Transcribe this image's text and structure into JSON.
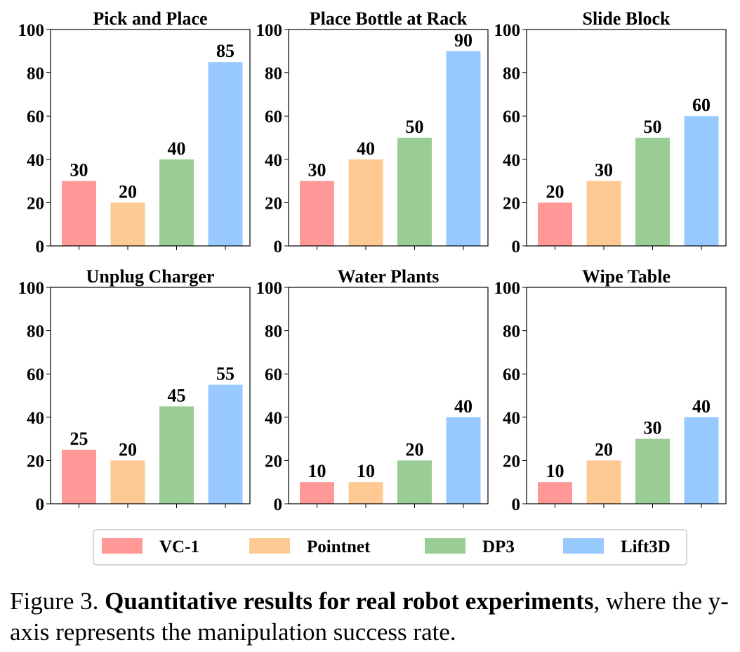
{
  "legend": {
    "series": [
      {
        "name": "VC-1",
        "color": "#ff9896"
      },
      {
        "name": "Pointnet",
        "color": "#ffc993"
      },
      {
        "name": "DP3",
        "color": "#9acd95"
      },
      {
        "name": "Lift3D",
        "color": "#99caff"
      }
    ],
    "placement": "bottom-center"
  },
  "caption": {
    "label": "Figure 3.",
    "bold": "Quantitative results for real robot experiments",
    "rest": ", where the y-axis represents the manipulation success rate."
  },
  "chart_data": [
    {
      "type": "bar",
      "title": "Pick and Place",
      "categories": [
        "VC-1",
        "Pointnet",
        "DP3",
        "Lift3D"
      ],
      "values": [
        30,
        20,
        40,
        85
      ],
      "ylim": [
        0,
        100
      ],
      "yticks": [
        0,
        20,
        40,
        60,
        80,
        100
      ],
      "xlabel": "",
      "ylabel": "",
      "grid": false
    },
    {
      "type": "bar",
      "title": "Place Bottle at Rack",
      "categories": [
        "VC-1",
        "Pointnet",
        "DP3",
        "Lift3D"
      ],
      "values": [
        30,
        40,
        50,
        90
      ],
      "ylim": [
        0,
        100
      ],
      "yticks": [
        0,
        20,
        40,
        60,
        80,
        100
      ],
      "xlabel": "",
      "ylabel": "",
      "grid": false
    },
    {
      "type": "bar",
      "title": "Slide Block",
      "categories": [
        "VC-1",
        "Pointnet",
        "DP3",
        "Lift3D"
      ],
      "values": [
        20,
        30,
        50,
        60
      ],
      "ylim": [
        0,
        100
      ],
      "yticks": [
        0,
        20,
        40,
        60,
        80,
        100
      ],
      "xlabel": "",
      "ylabel": "",
      "grid": false
    },
    {
      "type": "bar",
      "title": "Unplug Charger",
      "categories": [
        "VC-1",
        "Pointnet",
        "DP3",
        "Lift3D"
      ],
      "values": [
        25,
        20,
        45,
        55
      ],
      "ylim": [
        0,
        100
      ],
      "yticks": [
        0,
        20,
        40,
        60,
        80,
        100
      ],
      "xlabel": "",
      "ylabel": "",
      "grid": false
    },
    {
      "type": "bar",
      "title": "Water Plants",
      "categories": [
        "VC-1",
        "Pointnet",
        "DP3",
        "Lift3D"
      ],
      "values": [
        10,
        10,
        20,
        40
      ],
      "ylim": [
        0,
        100
      ],
      "yticks": [
        0,
        20,
        40,
        60,
        80,
        100
      ],
      "xlabel": "",
      "ylabel": "",
      "grid": false
    },
    {
      "type": "bar",
      "title": "Wipe Table",
      "categories": [
        "VC-1",
        "Pointnet",
        "DP3",
        "Lift3D"
      ],
      "values": [
        10,
        20,
        30,
        40
      ],
      "ylim": [
        0,
        100
      ],
      "yticks": [
        0,
        20,
        40,
        60,
        80,
        100
      ],
      "xlabel": "",
      "ylabel": "",
      "grid": false
    }
  ]
}
